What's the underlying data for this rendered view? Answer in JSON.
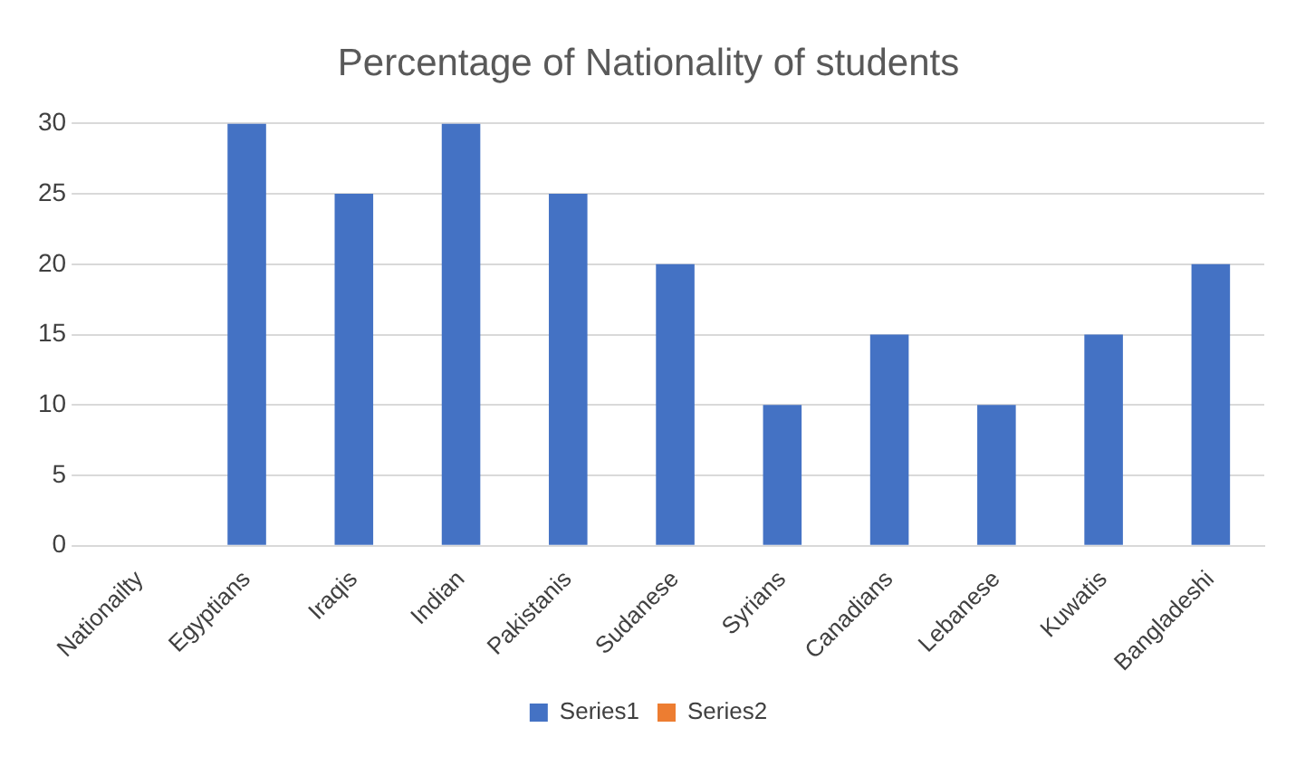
{
  "chart_data": {
    "type": "bar",
    "title": "Percentage of Nationality of students",
    "categories": [
      "Nationailty",
      "Egyptians",
      "Iraqis",
      "Indian",
      "Pakistanis",
      "Sudanese",
      "Syrians",
      "Canadians",
      "Lebanese",
      "Kuwatis",
      "Bangladeshi"
    ],
    "series": [
      {
        "name": "Series1",
        "color": "#4472c4",
        "values": [
          0,
          30,
          25,
          30,
          25,
          20,
          10,
          15,
          10,
          15,
          20
        ]
      },
      {
        "name": "Series2",
        "color": "#ed7d31",
        "values": [
          null,
          null,
          null,
          null,
          null,
          null,
          null,
          null,
          null,
          null,
          null
        ]
      }
    ],
    "ylim": [
      0,
      30
    ],
    "yticks": [
      0,
      5,
      10,
      15,
      20,
      25,
      30
    ],
    "grid": "y",
    "legend": "bottom"
  }
}
